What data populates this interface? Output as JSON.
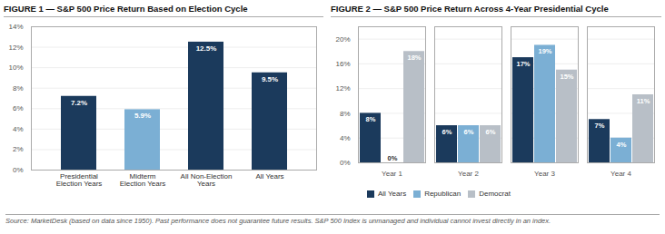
{
  "chart_data": [
    {
      "type": "bar",
      "title": "FIGURE 1 — S&P 500 Price Return Based on Election Cycle",
      "categories": [
        "Presidential\nElection Years",
        "Midterm\nElection Years",
        "All Non-Election\nYears",
        "All Years"
      ],
      "values": [
        7.2,
        5.9,
        12.5,
        9.5
      ],
      "value_labels": [
        "7.2%",
        "5.9%",
        "12.5%",
        "9.5%"
      ],
      "colors": [
        "#1b3a5c",
        "#7bafd4",
        "#1b3a5c",
        "#1b3a5c"
      ],
      "ylim": [
        0,
        14
      ],
      "yticks": [
        {
          "value": 0,
          "label": "0%"
        },
        {
          "value": 2,
          "label": "2%"
        },
        {
          "value": 4,
          "label": "4%"
        },
        {
          "value": 6,
          "label": "6%"
        },
        {
          "value": 8,
          "label": "8%"
        },
        {
          "value": 10,
          "label": "10%"
        },
        {
          "value": 12,
          "label": "12%"
        },
        {
          "value": 14,
          "label": "14%"
        }
      ],
      "grid": true,
      "data_labels": true
    },
    {
      "type": "bar",
      "title": "FIGURE 2 — S&P 500 Price Return Across 4-Year Presidential Cycle",
      "categories": [
        "Year 1",
        "Year 2",
        "Year 3",
        "Year 4"
      ],
      "series": [
        {
          "name": "All Years",
          "color": "#1b3a5c",
          "values": [
            8,
            6,
            17,
            7
          ],
          "value_labels": [
            "8%",
            "6%",
            "17%",
            "7%"
          ]
        },
        {
          "name": "Republican",
          "color": "#7bafd4",
          "values": [
            0,
            6,
            19,
            4
          ],
          "value_labels": [
            "0%",
            "6%",
            "19%",
            "4%"
          ]
        },
        {
          "name": "Democrat",
          "color": "#b8bfc7",
          "values": [
            18,
            6,
            15,
            11
          ],
          "value_labels": [
            "18%",
            "6%",
            "15%",
            "11%"
          ]
        }
      ],
      "ylim": [
        0,
        22
      ],
      "yticks": [
        {
          "value": 0,
          "label": "0%"
        },
        {
          "value": 4,
          "label": "4%"
        },
        {
          "value": 8,
          "label": "8%"
        },
        {
          "value": 12,
          "label": "12%"
        },
        {
          "value": 16,
          "label": "16%"
        },
        {
          "value": 20,
          "label": "20%"
        }
      ],
      "grid": true,
      "legend": "bottom",
      "data_labels": true
    }
  ],
  "annotations": [
    "Source: MarketDesk (based on data since 1950). Past performance does not guarantee future results. S&P 500 Index is unmanaged and individual cannot invest directly in an index."
  ]
}
